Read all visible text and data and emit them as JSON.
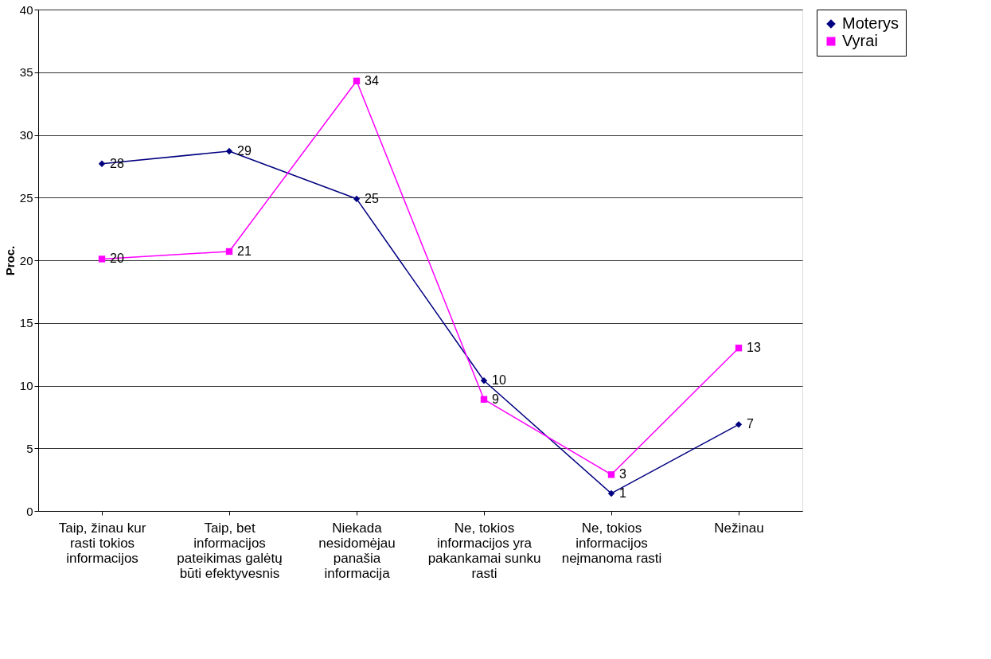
{
  "chart_data": {
    "type": "line",
    "ylabel": "Proc.",
    "categories": [
      "Taip, žinau kur rasti tokios informacijos",
      "Taip, bet informacijos pateikimas galėtų būti efektyvesnis",
      "Niekada nesidomėjau panašia informacija",
      "Ne, tokios informacijos yra pakankamai sunku rasti",
      "Ne, tokios informacijos neįmanoma rasti",
      "Nežinau"
    ],
    "series": [
      {
        "name": "Moterys",
        "color": "#000080",
        "marker": "diamond",
        "values": [
          27.7,
          28.7,
          24.9,
          10.4,
          1.4,
          6.9
        ],
        "value_labels": [
          "28",
          "29",
          "25",
          "10",
          "1",
          "7"
        ]
      },
      {
        "name": "Vyrai",
        "color": "#ff00ff",
        "marker": "square",
        "values": [
          20.1,
          20.7,
          34.3,
          8.9,
          2.9,
          13.0
        ],
        "value_labels": [
          "20",
          "21",
          "34",
          "9",
          "3",
          "13"
        ]
      }
    ],
    "ylim": [
      0,
      40
    ],
    "yticks": [
      0,
      5,
      10,
      15,
      20,
      25,
      30,
      35,
      40
    ],
    "grid": "y",
    "legend": "right",
    "line_style": "solid"
  }
}
